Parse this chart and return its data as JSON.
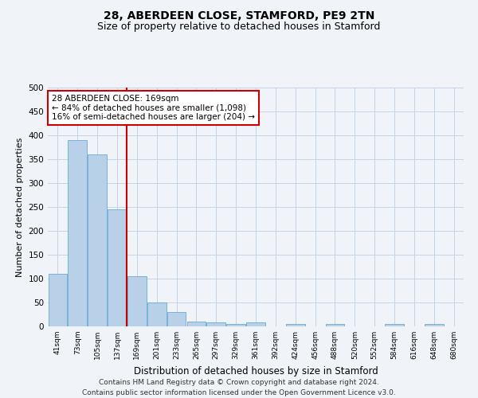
{
  "title1": "28, ABERDEEN CLOSE, STAMFORD, PE9 2TN",
  "title2": "Size of property relative to detached houses in Stamford",
  "xlabel": "Distribution of detached houses by size in Stamford",
  "ylabel": "Number of detached properties",
  "categories": [
    "41sqm",
    "73sqm",
    "105sqm",
    "137sqm",
    "169sqm",
    "201sqm",
    "233sqm",
    "265sqm",
    "297sqm",
    "329sqm",
    "361sqm",
    "392sqm",
    "424sqm",
    "456sqm",
    "488sqm",
    "520sqm",
    "552sqm",
    "584sqm",
    "616sqm",
    "648sqm",
    "680sqm"
  ],
  "values": [
    110,
    390,
    360,
    245,
    105,
    50,
    30,
    10,
    8,
    5,
    8,
    0,
    5,
    0,
    5,
    0,
    0,
    5,
    0,
    5,
    0
  ],
  "bar_color": "#b8d0e8",
  "bar_edge_color": "#6aaad4",
  "vline_x": 4,
  "vline_color": "#cc0000",
  "annotation_text": "28 ABERDEEN CLOSE: 169sqm\n← 84% of detached houses are smaller (1,098)\n16% of semi-detached houses are larger (204) →",
  "annotation_box_color": "#ffffff",
  "annotation_box_edge": "#cc0000",
  "ylim": [
    0,
    500
  ],
  "yticks": [
    0,
    50,
    100,
    150,
    200,
    250,
    300,
    350,
    400,
    450,
    500
  ],
  "footer1": "Contains HM Land Registry data © Crown copyright and database right 2024.",
  "footer2": "Contains public sector information licensed under the Open Government Licence v3.0.",
  "bg_color": "#f0f4f8",
  "grid_color": "#c5d5e5",
  "title1_fontsize": 10,
  "title2_fontsize": 9,
  "annot_fontsize": 7.5,
  "footer_fontsize": 6.5,
  "ylabel_fontsize": 8,
  "xlabel_fontsize": 8.5,
  "xtick_fontsize": 6.5,
  "ytick_fontsize": 7.5
}
